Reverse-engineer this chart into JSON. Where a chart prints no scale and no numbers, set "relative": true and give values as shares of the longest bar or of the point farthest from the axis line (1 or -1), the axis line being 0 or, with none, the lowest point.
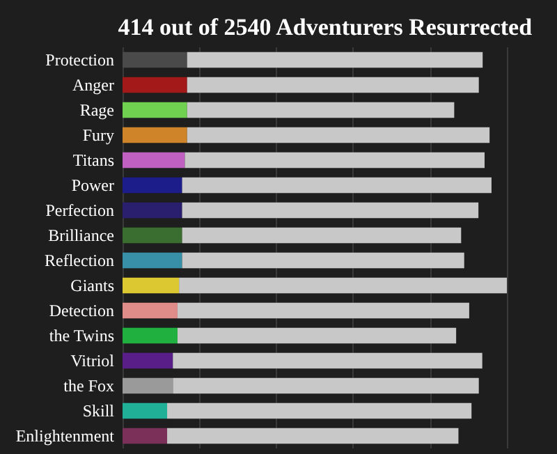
{
  "chart_data": {
    "type": "bar",
    "orientation": "horizontal",
    "stacked": true,
    "relative": true,
    "grid": "x",
    "title": "414 out of 2540 Adventurers Resurrected",
    "categories": [
      "Protection",
      "Anger",
      "Rage",
      "Fury",
      "Titans",
      "Power",
      "Perfection",
      "Brilliance",
      "Reflection",
      "Giants",
      "Detection",
      "the Twins",
      "Vitriol",
      "the Fox",
      "Skill",
      "Enlightenment"
    ],
    "series": [
      {
        "colors": [
          "#4a4a4a",
          "#a31919",
          "#6fd14f",
          "#d0842a",
          "#c060c0",
          "#1c1c8a",
          "#2a1e6e",
          "#3a6e30",
          "#3890a8",
          "#dcc830",
          "#e08c88",
          "#20b040",
          "#5a1e88",
          "#9a9a9a",
          "#20b098",
          "#7a3058"
        ],
        "values": [
          0.168,
          0.168,
          0.168,
          0.168,
          0.162,
          0.155,
          0.155,
          0.155,
          0.155,
          0.147,
          0.143,
          0.143,
          0.131,
          0.131,
          0.116,
          0.116
        ]
      },
      {
        "color": "#c8c8c8",
        "values": [
          0.769,
          0.759,
          0.695,
          0.787,
          0.78,
          0.805,
          0.771,
          0.726,
          0.734,
          0.853,
          0.759,
          0.725,
          0.805,
          0.796,
          0.792,
          0.758
        ]
      }
    ]
  }
}
